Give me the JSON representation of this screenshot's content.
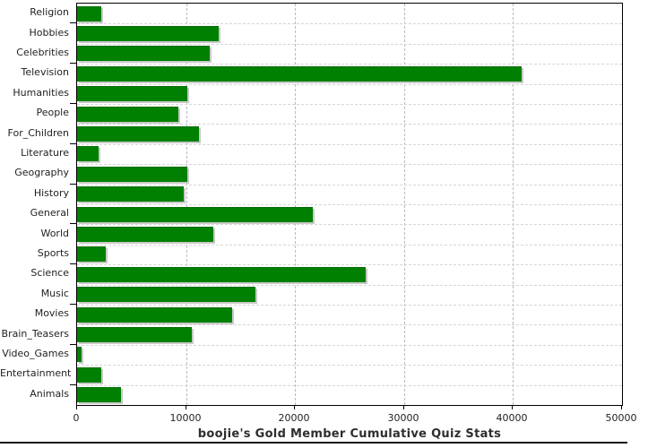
{
  "chart_data": {
    "type": "bar",
    "orientation": "horizontal",
    "title": "boojie's Gold Member Cumulative Quiz Stats",
    "categories": [
      "Religion",
      "Hobbies",
      "Celebrities",
      "Television",
      "Humanities",
      "People",
      "For_Children",
      "Literature",
      "Geography",
      "History",
      "General",
      "World",
      "Sports",
      "Science",
      "Music",
      "Movies",
      "Brain_Teasers",
      "Video_Games",
      "Entertainment",
      "Animals"
    ],
    "values": [
      2200,
      13000,
      12200,
      40800,
      10100,
      9300,
      11200,
      2000,
      10100,
      9800,
      21600,
      12500,
      2600,
      26500,
      16400,
      14200,
      10500,
      400,
      2200,
      4000
    ],
    "xlim": [
      0,
      50000
    ],
    "x_ticks": [
      0,
      10000,
      20000,
      30000,
      40000,
      50000
    ],
    "x_tick_labels": [
      "0",
      "10000",
      "20000",
      "30000",
      "40000",
      "50000"
    ],
    "legend": "none",
    "grid": {
      "vertical_dashed": true,
      "horizontal_dashed": true
    },
    "colors": {
      "bar_fill": "#008000",
      "bar_shadow": "#c9c9c9",
      "grid_vertical": "#b3bbc6",
      "grid_horizontal": "#d6d6d6",
      "axis": "#000000",
      "tick_text": "#1f1f1f",
      "title_text": "#2e2e2e",
      "background": "#ffffff"
    }
  }
}
